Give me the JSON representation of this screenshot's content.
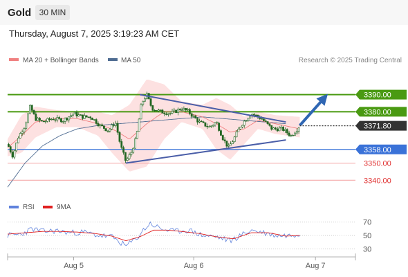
{
  "header": {
    "symbol": "Gold",
    "timeframe": "30 MIN"
  },
  "datetime": "Thursday, August 7, 2025 3:19:23 AM CET",
  "legend": {
    "ma20": "MA 20 + Bollinger Bands",
    "ma50": "MA 50",
    "copyright": "Research © 2025 Trading Central",
    "rsi": "RSI",
    "rsi_ma": "9MA"
  },
  "colors": {
    "green": "#4a9a12",
    "blue_level": "#3a72d8",
    "red_level": "#f4a0a0",
    "candle": "#226622",
    "ma20": "#f08080",
    "ma50": "#4f6c92",
    "band_fill": "#fde1e1",
    "trendline": "#4a5ea8",
    "arrow": "#2f66b3",
    "rsi": "#5f82dc",
    "rsi_ma": "#e02020",
    "price_tag": "#333333"
  },
  "chart_data": [
    {
      "type": "line",
      "title": "",
      "x_ticks": [
        "Aug 5",
        "Aug 6",
        "Aug 7"
      ],
      "ylim": [
        3330,
        3404
      ],
      "levels": [
        {
          "label": "3390.00",
          "value": 3390.0,
          "role": "resistance"
        },
        {
          "label": "3380.00",
          "value": 3380.0,
          "role": "resistance"
        },
        {
          "label": "3358.00",
          "value": 3358.0,
          "role": "support"
        },
        {
          "label": "3350.00",
          "value": 3350.0,
          "role": "support"
        },
        {
          "label": "3340.00",
          "value": 3340.0,
          "role": "support"
        }
      ],
      "last_price": {
        "label": "3371.80",
        "value": 3371.8
      },
      "trendlines": [
        {
          "name": "upper",
          "points": [
            [
              0.38,
              3390.0
            ],
            [
              0.8,
              3374.0
            ]
          ]
        },
        {
          "name": "lower",
          "points": [
            [
              0.34,
              3350.0
            ],
            [
              0.8,
              3363.5
            ]
          ]
        }
      ],
      "projection": {
        "from": [
          0.84,
          3372.0
        ],
        "to": [
          0.918,
          3390.0
        ]
      },
      "price_path": [
        [
          0.0,
          3361
        ],
        [
          0.015,
          3354
        ],
        [
          0.03,
          3365
        ],
        [
          0.05,
          3372
        ],
        [
          0.065,
          3383
        ],
        [
          0.08,
          3376
        ],
        [
          0.1,
          3374
        ],
        [
          0.13,
          3376
        ],
        [
          0.16,
          3375
        ],
        [
          0.19,
          3379
        ],
        [
          0.215,
          3377
        ],
        [
          0.24,
          3377
        ],
        [
          0.265,
          3372
        ],
        [
          0.29,
          3369
        ],
        [
          0.31,
          3374
        ],
        [
          0.325,
          3360
        ],
        [
          0.34,
          3351
        ],
        [
          0.355,
          3356
        ],
        [
          0.37,
          3365
        ],
        [
          0.385,
          3385
        ],
        [
          0.4,
          3390
        ],
        [
          0.415,
          3382
        ],
        [
          0.44,
          3380
        ],
        [
          0.47,
          3379
        ],
        [
          0.5,
          3382
        ],
        [
          0.52,
          3380
        ],
        [
          0.55,
          3374
        ],
        [
          0.58,
          3371
        ],
        [
          0.6,
          3374
        ],
        [
          0.62,
          3364
        ],
        [
          0.635,
          3359
        ],
        [
          0.65,
          3364
        ],
        [
          0.67,
          3372
        ],
        [
          0.7,
          3379
        ],
        [
          0.73,
          3376
        ],
        [
          0.76,
          3370
        ],
        [
          0.79,
          3370
        ],
        [
          0.815,
          3366
        ],
        [
          0.84,
          3371.8
        ]
      ],
      "ma20": [
        [
          0.0,
          3359
        ],
        [
          0.04,
          3366
        ],
        [
          0.08,
          3374
        ],
        [
          0.14,
          3376
        ],
        [
          0.2,
          3376
        ],
        [
          0.26,
          3373
        ],
        [
          0.31,
          3369
        ],
        [
          0.35,
          3364
        ],
        [
          0.4,
          3373
        ],
        [
          0.45,
          3380
        ],
        [
          0.5,
          3380
        ],
        [
          0.56,
          3377
        ],
        [
          0.6,
          3373
        ],
        [
          0.64,
          3368
        ],
        [
          0.68,
          3370
        ],
        [
          0.72,
          3375
        ],
        [
          0.77,
          3373
        ],
        [
          0.84,
          3370
        ]
      ],
      "ma50": [
        [
          0.0,
          3336
        ],
        [
          0.05,
          3350
        ],
        [
          0.1,
          3360
        ],
        [
          0.15,
          3366
        ],
        [
          0.2,
          3370
        ],
        [
          0.26,
          3372
        ],
        [
          0.32,
          3373
        ],
        [
          0.38,
          3374
        ],
        [
          0.44,
          3375
        ],
        [
          0.5,
          3376
        ],
        [
          0.56,
          3377
        ],
        [
          0.62,
          3376
        ],
        [
          0.68,
          3375
        ],
        [
          0.74,
          3374
        ],
        [
          0.8,
          3373
        ]
      ],
      "bb_upper": [
        [
          0.0,
          3364
        ],
        [
          0.04,
          3378
        ],
        [
          0.08,
          3383
        ],
        [
          0.14,
          3381
        ],
        [
          0.2,
          3380
        ],
        [
          0.26,
          3380
        ],
        [
          0.3,
          3378
        ],
        [
          0.35,
          3384
        ],
        [
          0.4,
          3399
        ],
        [
          0.45,
          3396
        ],
        [
          0.5,
          3386
        ],
        [
          0.56,
          3384
        ],
        [
          0.6,
          3388
        ],
        [
          0.64,
          3384
        ],
        [
          0.68,
          3377
        ],
        [
          0.72,
          3380
        ],
        [
          0.77,
          3378
        ],
        [
          0.84,
          3377
        ]
      ],
      "bb_lower": [
        [
          0.0,
          3354
        ],
        [
          0.04,
          3356
        ],
        [
          0.08,
          3365
        ],
        [
          0.14,
          3371
        ],
        [
          0.2,
          3371
        ],
        [
          0.26,
          3366
        ],
        [
          0.3,
          3356
        ],
        [
          0.35,
          3345
        ],
        [
          0.4,
          3348
        ],
        [
          0.45,
          3364
        ],
        [
          0.5,
          3374
        ],
        [
          0.56,
          3370
        ],
        [
          0.6,
          3358
        ],
        [
          0.64,
          3352
        ],
        [
          0.68,
          3361
        ],
        [
          0.72,
          3370
        ],
        [
          0.77,
          3367
        ],
        [
          0.84,
          3365
        ]
      ]
    },
    {
      "type": "line",
      "title": "",
      "ylim": [
        23,
        77
      ],
      "y_ticks": [
        70,
        50,
        30
      ],
      "rsi": [
        [
          0.0,
          50
        ],
        [
          0.04,
          52
        ],
        [
          0.07,
          60
        ],
        [
          0.1,
          56
        ],
        [
          0.14,
          57
        ],
        [
          0.18,
          54
        ],
        [
          0.22,
          55
        ],
        [
          0.26,
          50
        ],
        [
          0.3,
          48
        ],
        [
          0.34,
          34
        ],
        [
          0.37,
          45
        ],
        [
          0.39,
          58
        ],
        [
          0.41,
          68
        ],
        [
          0.44,
          60
        ],
        [
          0.48,
          56
        ],
        [
          0.52,
          58
        ],
        [
          0.56,
          50
        ],
        [
          0.6,
          48
        ],
        [
          0.64,
          42
        ],
        [
          0.67,
          50
        ],
        [
          0.7,
          58
        ],
        [
          0.73,
          55
        ],
        [
          0.77,
          50
        ],
        [
          0.81,
          50
        ],
        [
          0.84,
          53
        ]
      ],
      "rsi_ma": [
        [
          0.0,
          52
        ],
        [
          0.05,
          54
        ],
        [
          0.1,
          56
        ],
        [
          0.15,
          56
        ],
        [
          0.2,
          55
        ],
        [
          0.25,
          53
        ],
        [
          0.3,
          49
        ],
        [
          0.34,
          42
        ],
        [
          0.38,
          48
        ],
        [
          0.42,
          58
        ],
        [
          0.46,
          58
        ],
        [
          0.5,
          56
        ],
        [
          0.55,
          53
        ],
        [
          0.6,
          48
        ],
        [
          0.65,
          45
        ],
        [
          0.7,
          54
        ],
        [
          0.75,
          54
        ],
        [
          0.8,
          49
        ],
        [
          0.84,
          50
        ]
      ]
    }
  ]
}
